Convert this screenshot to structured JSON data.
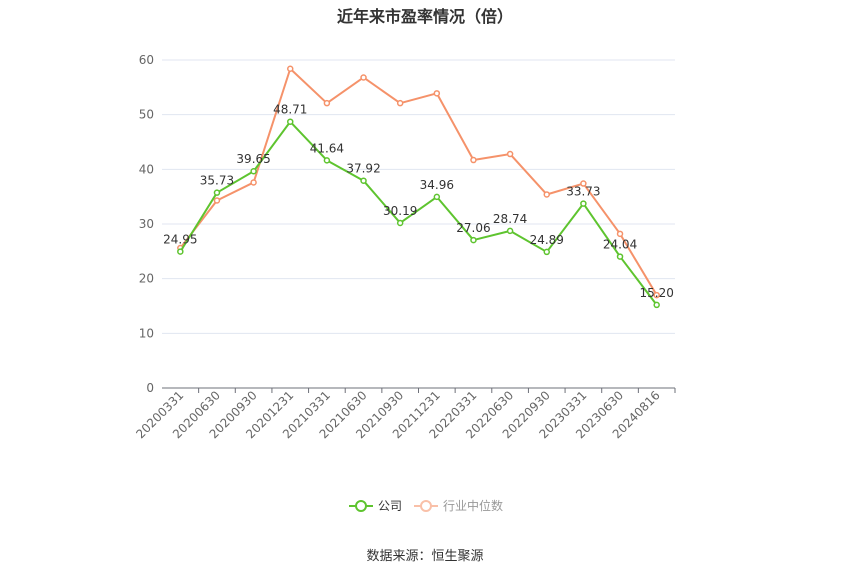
{
  "chart_data": {
    "type": "line",
    "title": "近年来市盈率情况（倍）",
    "xlabel": "",
    "ylabel": "",
    "ylim": [
      0,
      60
    ],
    "yticks": [
      0,
      10,
      20,
      30,
      40,
      50,
      60
    ],
    "grid": true,
    "legend_position": "bottom",
    "categories": [
      "20200331",
      "20200630",
      "20200930",
      "20201231",
      "20210331",
      "20210630",
      "20210930",
      "20211231",
      "20220331",
      "20220630",
      "20220930",
      "20230331",
      "20230630",
      "20240816"
    ],
    "series": [
      {
        "name": "公司",
        "color": "#5ec42f",
        "values": [
          24.95,
          35.73,
          39.65,
          48.71,
          41.64,
          37.92,
          30.19,
          34.96,
          27.06,
          28.74,
          24.89,
          33.73,
          24.04,
          15.2
        ],
        "labels": [
          "24.95",
          "35.73",
          "39.65",
          "48.71",
          "41.64",
          "37.92",
          "30.19",
          "34.96",
          "27.06",
          "28.74",
          "24.89",
          "33.73",
          "24.04",
          "15.20"
        ]
      },
      {
        "name": "行业中位数",
        "color": "#f5926a",
        "values": [
          25.6,
          34.3,
          37.6,
          58.4,
          52.1,
          56.8,
          52.1,
          53.9,
          41.7,
          42.8,
          35.4,
          37.4,
          28.2,
          17.0
        ]
      }
    ]
  },
  "footer": {
    "source": "数据来源：恒生聚源"
  }
}
